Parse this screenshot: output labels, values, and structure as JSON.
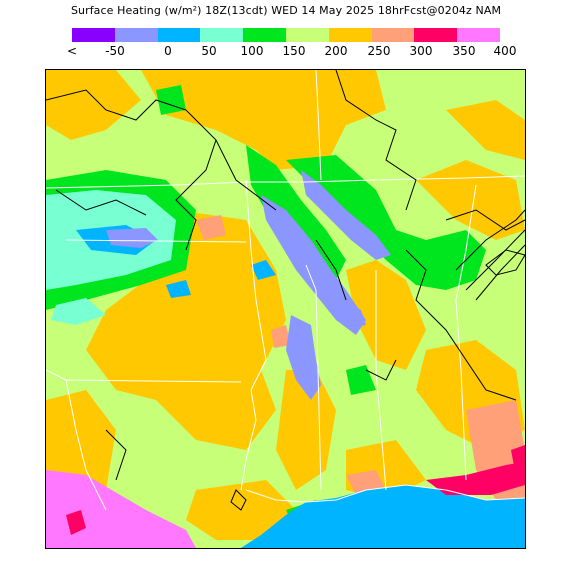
{
  "title": "Surface Heating (w/m²) 18Z(13cdt) WED 14 May 2025 18hrFcst@0204z NAM",
  "colorbar": {
    "colors": [
      "#8a00ff",
      "#8c96ff",
      "#00b4ff",
      "#78ffd2",
      "#00e61e",
      "#c8ff78",
      "#ffc800",
      "#ffa078",
      "#ff0064",
      "#ff78ff"
    ],
    "ticks": [
      "<",
      "-50",
      "0",
      "50",
      "100",
      "150",
      "200",
      "250",
      "300",
      "350",
      "400"
    ]
  },
  "map": {
    "background_class": "#c8ff78",
    "water_color": "#00b4ff",
    "boundary_color": "#ffffff",
    "contour_color": "#000000"
  }
}
